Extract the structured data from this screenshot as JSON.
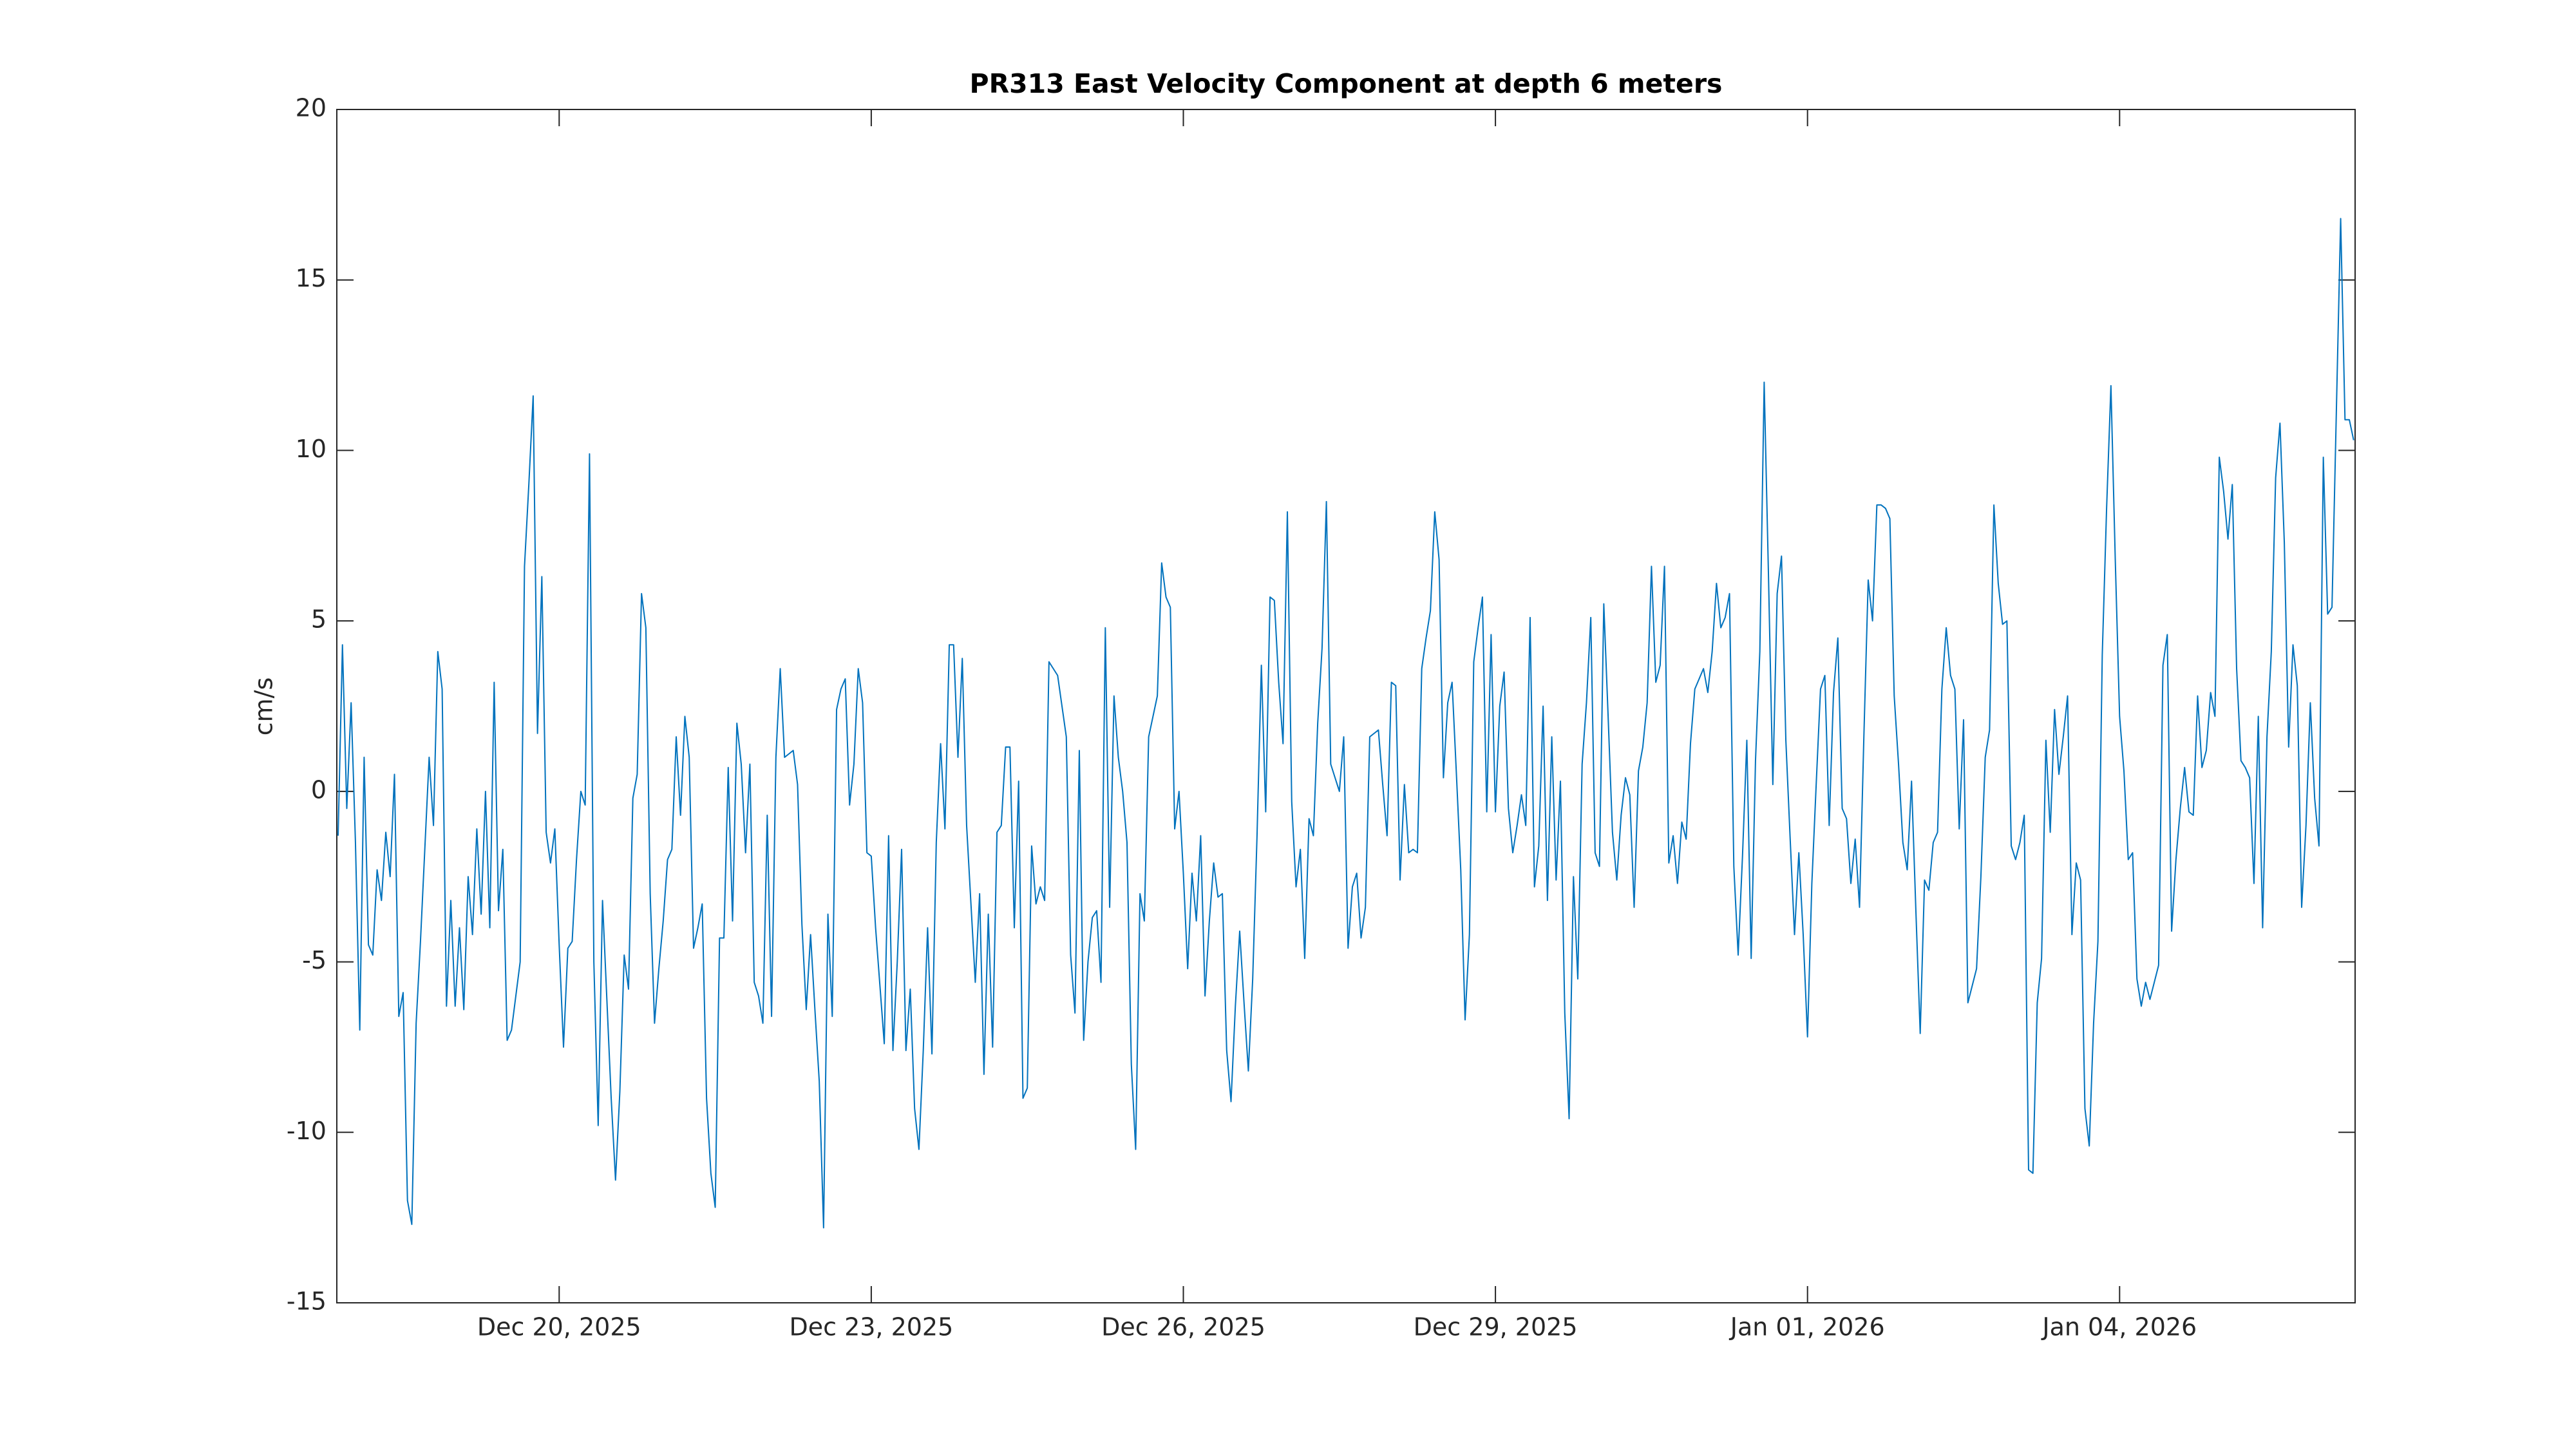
{
  "chart_data": {
    "type": "line",
    "title": "PR313 East Velocity Component at depth 6 meters",
    "ylabel": "cm/s",
    "color": "#0072bd",
    "ylim": [
      -15,
      20
    ],
    "yticks": [
      -15,
      -10,
      -5,
      0,
      5,
      10,
      15,
      20
    ],
    "xlim": [
      "2025-12-17 20:42",
      "2026-01-06 06:20"
    ],
    "xticks": [
      {
        "value": "2025-12-20 00:00",
        "label": "Dec 20, 2025"
      },
      {
        "value": "2025-12-23 00:00",
        "label": "Dec 23, 2025"
      },
      {
        "value": "2025-12-26 00:00",
        "label": "Dec 26, 2025"
      },
      {
        "value": "2025-12-29 00:00",
        "label": "Dec 29, 2025"
      },
      {
        "value": "2026-01-01 00:00",
        "label": "Jan 01, 2026"
      },
      {
        "value": "2026-01-04 00:00",
        "label": "Jan 04, 2026"
      }
    ],
    "x": [
      "2025-12-17 21:00",
      "2025-12-17 22:00",
      "2025-12-17 23:00",
      "2025-12-18 00:00",
      "2025-12-18 01:00",
      "2025-12-18 02:00",
      "2025-12-18 03:00",
      "2025-12-18 04:00",
      "2025-12-18 05:00",
      "2025-12-18 06:00",
      "2025-12-18 07:00",
      "2025-12-18 08:00",
      "2025-12-18 09:00",
      "2025-12-18 10:00",
      "2025-12-18 11:00",
      "2025-12-18 12:00",
      "2025-12-18 13:00",
      "2025-12-18 14:00",
      "2025-12-18 15:00",
      "2025-12-18 16:00",
      "2025-12-18 17:00",
      "2025-12-18 18:00",
      "2025-12-18 19:00",
      "2025-12-18 20:00",
      "2025-12-18 21:00",
      "2025-12-18 22:00",
      "2025-12-18 23:00",
      "2025-12-19 00:00",
      "2025-12-19 01:00",
      "2025-12-19 02:00",
      "2025-12-19 03:00",
      "2025-12-19 04:00",
      "2025-12-19 05:00",
      "2025-12-19 06:00",
      "2025-12-19 07:00",
      "2025-12-19 08:00",
      "2025-12-19 09:00",
      "2025-12-19 10:00",
      "2025-12-19 11:00",
      "2025-12-19 12:00",
      "2025-12-19 13:00",
      "2025-12-19 14:00",
      "2025-12-19 15:00",
      "2025-12-19 16:00",
      "2025-12-19 17:00",
      "2025-12-19 18:00",
      "2025-12-19 19:00",
      "2025-12-19 20:00",
      "2025-12-19 21:00",
      "2025-12-19 22:00",
      "2025-12-19 23:00",
      "2025-12-20 00:00",
      "2025-12-20 01:00",
      "2025-12-20 02:00",
      "2025-12-20 03:00",
      "2025-12-20 04:00",
      "2025-12-20 05:00",
      "2025-12-20 06:00",
      "2025-12-20 07:00",
      "2025-12-20 08:00",
      "2025-12-20 09:00",
      "2025-12-20 10:00",
      "2025-12-20 11:00",
      "2025-12-20 12:00",
      "2025-12-20 13:00",
      "2025-12-20 14:00",
      "2025-12-20 15:00",
      "2025-12-20 16:00",
      "2025-12-20 17:00",
      "2025-12-20 18:00",
      "2025-12-20 19:00",
      "2025-12-20 20:00",
      "2025-12-20 21:00",
      "2025-12-20 22:00",
      "2025-12-20 23:00",
      "2025-12-21 00:00",
      "2025-12-21 01:00",
      "2025-12-21 02:00",
      "2025-12-21 03:00",
      "2025-12-21 04:00",
      "2025-12-21 05:00",
      "2025-12-21 06:00",
      "2025-12-21 07:00",
      "2025-12-21 08:00",
      "2025-12-21 09:00",
      "2025-12-21 10:00",
      "2025-12-21 11:00",
      "2025-12-21 12:00",
      "2025-12-21 13:00",
      "2025-12-21 14:00",
      "2025-12-21 15:00",
      "2025-12-21 16:00",
      "2025-12-21 17:00",
      "2025-12-21 18:00",
      "2025-12-21 19:00",
      "2025-12-21 20:00",
      "2025-12-21 21:00",
      "2025-12-21 22:00",
      "2025-12-21 23:00",
      "2025-12-22 00:00",
      "2025-12-22 01:00",
      "2025-12-22 02:00",
      "2025-12-22 03:00",
      "2025-12-22 04:00",
      "2025-12-22 05:00",
      "2025-12-22 06:00",
      "2025-12-22 07:00",
      "2025-12-22 08:00",
      "2025-12-22 09:00",
      "2025-12-22 10:00",
      "2025-12-22 11:00",
      "2025-12-22 12:00",
      "2025-12-22 13:00",
      "2025-12-22 14:00",
      "2025-12-22 15:00",
      "2025-12-22 16:00",
      "2025-12-22 17:00",
      "2025-12-22 18:00",
      "2025-12-22 19:00",
      "2025-12-22 20:00",
      "2025-12-22 21:00",
      "2025-12-22 22:00",
      "2025-12-22 23:00",
      "2025-12-23 00:00",
      "2025-12-23 01:00",
      "2025-12-23 02:00",
      "2025-12-23 03:00",
      "2025-12-23 04:00",
      "2025-12-23 05:00",
      "2025-12-23 06:00",
      "2025-12-23 07:00",
      "2025-12-23 08:00",
      "2025-12-23 09:00",
      "2025-12-23 10:00",
      "2025-12-23 11:00",
      "2025-12-23 12:00",
      "2025-12-23 13:00",
      "2025-12-23 14:00",
      "2025-12-23 15:00",
      "2025-12-23 16:00",
      "2025-12-23 17:00",
      "2025-12-23 18:00",
      "2025-12-23 19:00",
      "2025-12-23 20:00",
      "2025-12-23 21:00",
      "2025-12-23 22:00",
      "2025-12-23 23:00",
      "2025-12-24 00:00",
      "2025-12-24 01:00",
      "2025-12-24 02:00",
      "2025-12-24 03:00",
      "2025-12-24 04:00",
      "2025-12-24 05:00",
      "2025-12-24 06:00",
      "2025-12-24 07:00",
      "2025-12-24 08:00",
      "2025-12-24 09:00",
      "2025-12-24 10:00",
      "2025-12-24 11:00",
      "2025-12-24 12:00",
      "2025-12-24 13:00",
      "2025-12-24 14:00",
      "2025-12-24 15:00",
      "2025-12-24 16:00",
      "2025-12-24 17:00",
      "2025-12-24 18:00",
      "2025-12-24 19:00",
      "2025-12-24 20:00",
      "2025-12-24 21:00",
      "2025-12-24 22:00",
      "2025-12-24 23:00",
      "2025-12-25 00:00",
      "2025-12-25 01:00",
      "2025-12-25 02:00",
      "2025-12-25 03:00",
      "2025-12-25 04:00",
      "2025-12-25 05:00",
      "2025-12-25 06:00",
      "2025-12-25 07:00",
      "2025-12-25 08:00",
      "2025-12-25 09:00",
      "2025-12-25 10:00",
      "2025-12-25 11:00",
      "2025-12-25 12:00",
      "2025-12-25 13:00",
      "2025-12-25 14:00",
      "2025-12-25 15:00",
      "2025-12-25 16:00",
      "2025-12-25 17:00",
      "2025-12-25 18:00",
      "2025-12-25 19:00",
      "2025-12-25 20:00",
      "2025-12-25 21:00",
      "2025-12-25 22:00",
      "2025-12-25 23:00",
      "2025-12-26 00:00",
      "2025-12-26 01:00",
      "2025-12-26 02:00",
      "2025-12-26 03:00",
      "2025-12-26 04:00",
      "2025-12-26 05:00",
      "2025-12-26 06:00",
      "2025-12-26 07:00",
      "2025-12-26 08:00",
      "2025-12-26 09:00",
      "2025-12-26 10:00",
      "2025-12-26 11:00",
      "2025-12-26 12:00",
      "2025-12-26 13:00",
      "2025-12-26 14:00",
      "2025-12-26 15:00",
      "2025-12-26 16:00",
      "2025-12-26 17:00",
      "2025-12-26 18:00",
      "2025-12-26 19:00",
      "2025-12-26 20:00",
      "2025-12-26 21:00",
      "2025-12-26 22:00",
      "2025-12-26 23:00",
      "2025-12-27 00:00",
      "2025-12-27 01:00",
      "2025-12-27 02:00",
      "2025-12-27 03:00",
      "2025-12-27 04:00",
      "2025-12-27 05:00",
      "2025-12-27 06:00",
      "2025-12-27 07:00",
      "2025-12-27 08:00",
      "2025-12-27 09:00",
      "2025-12-27 10:00",
      "2025-12-27 11:00",
      "2025-12-27 12:00",
      "2025-12-27 13:00",
      "2025-12-27 14:00",
      "2025-12-27 15:00",
      "2025-12-27 16:00",
      "2025-12-27 17:00",
      "2025-12-27 18:00",
      "2025-12-27 19:00",
      "2025-12-27 20:00",
      "2025-12-27 21:00",
      "2025-12-27 22:00",
      "2025-12-27 23:00",
      "2025-12-28 00:00",
      "2025-12-28 01:00",
      "2025-12-28 02:00",
      "2025-12-28 03:00",
      "2025-12-28 04:00",
      "2025-12-28 05:00",
      "2025-12-28 06:00",
      "2025-12-28 07:00",
      "2025-12-28 08:00",
      "2025-12-28 09:00",
      "2025-12-28 10:00",
      "2025-12-28 11:00",
      "2025-12-28 12:00",
      "2025-12-28 13:00",
      "2025-12-28 14:00",
      "2025-12-28 15:00",
      "2025-12-28 16:00",
      "2025-12-28 17:00",
      "2025-12-28 18:00",
      "2025-12-28 19:00",
      "2025-12-28 20:00",
      "2025-12-28 21:00",
      "2025-12-28 22:00",
      "2025-12-28 23:00",
      "2025-12-29 00:00",
      "2025-12-29 01:00",
      "2025-12-29 02:00",
      "2025-12-29 03:00",
      "2025-12-29 04:00",
      "2025-12-29 05:00",
      "2025-12-29 06:00",
      "2025-12-29 07:00",
      "2025-12-29 08:00",
      "2025-12-29 09:00",
      "2025-12-29 10:00",
      "2025-12-29 11:00",
      "2025-12-29 12:00",
      "2025-12-29 13:00",
      "2025-12-29 14:00",
      "2025-12-29 15:00",
      "2025-12-29 16:00",
      "2025-12-29 17:00",
      "2025-12-29 18:00",
      "2025-12-29 19:00",
      "2025-12-29 20:00",
      "2025-12-29 21:00",
      "2025-12-29 22:00",
      "2025-12-29 23:00",
      "2025-12-30 00:00",
      "2025-12-30 01:00",
      "2025-12-30 02:00",
      "2025-12-30 03:00",
      "2025-12-30 04:00",
      "2025-12-30 05:00",
      "2025-12-30 06:00",
      "2025-12-30 07:00",
      "2025-12-30 08:00",
      "2025-12-30 09:00",
      "2025-12-30 10:00",
      "2025-12-30 11:00",
      "2025-12-30 12:00",
      "2025-12-30 13:00",
      "2025-12-30 14:00",
      "2025-12-30 15:00",
      "2025-12-30 16:00",
      "2025-12-30 17:00",
      "2025-12-30 18:00",
      "2025-12-30 19:00",
      "2025-12-30 20:00",
      "2025-12-30 21:00",
      "2025-12-30 22:00",
      "2025-12-30 23:00",
      "2025-12-31 00:00",
      "2025-12-31 01:00",
      "2025-12-31 02:00",
      "2025-12-31 03:00",
      "2025-12-31 04:00",
      "2025-12-31 05:00",
      "2025-12-31 06:00",
      "2025-12-31 07:00",
      "2025-12-31 08:00",
      "2025-12-31 09:00",
      "2025-12-31 10:00",
      "2025-12-31 11:00",
      "2025-12-31 12:00",
      "2025-12-31 13:00",
      "2025-12-31 14:00",
      "2025-12-31 15:00",
      "2025-12-31 16:00",
      "2025-12-31 17:00",
      "2025-12-31 18:00",
      "2025-12-31 19:00",
      "2025-12-31 20:00",
      "2025-12-31 21:00",
      "2025-12-31 22:00",
      "2025-12-31 23:00",
      "2026-01-01 00:00",
      "2026-01-01 01:00",
      "2026-01-01 02:00",
      "2026-01-01 03:00",
      "2026-01-01 04:00",
      "2026-01-01 05:00",
      "2026-01-01 06:00",
      "2026-01-01 07:00",
      "2026-01-01 08:00",
      "2026-01-01 09:00",
      "2026-01-01 10:00",
      "2026-01-01 11:00",
      "2026-01-01 12:00",
      "2026-01-01 13:00",
      "2026-01-01 14:00",
      "2026-01-01 15:00",
      "2026-01-01 16:00",
      "2026-01-01 17:00",
      "2026-01-01 18:00",
      "2026-01-01 19:00",
      "2026-01-01 20:00",
      "2026-01-01 21:00",
      "2026-01-01 22:00",
      "2026-01-01 23:00",
      "2026-01-02 00:00",
      "2026-01-02 01:00",
      "2026-01-02 02:00",
      "2026-01-02 03:00",
      "2026-01-02 04:00",
      "2026-01-02 05:00",
      "2026-01-02 06:00",
      "2026-01-02 07:00",
      "2026-01-02 08:00",
      "2026-01-02 09:00",
      "2026-01-02 10:00",
      "2026-01-02 11:00",
      "2026-01-02 12:00",
      "2026-01-02 13:00",
      "2026-01-02 14:00",
      "2026-01-02 15:00",
      "2026-01-02 16:00",
      "2026-01-02 17:00",
      "2026-01-02 18:00",
      "2026-01-02 19:00",
      "2026-01-02 20:00",
      "2026-01-02 21:00",
      "2026-01-02 22:00",
      "2026-01-02 23:00",
      "2026-01-03 00:00",
      "2026-01-03 01:00",
      "2026-01-03 02:00",
      "2026-01-03 03:00",
      "2026-01-03 04:00",
      "2026-01-03 05:00",
      "2026-01-03 06:00",
      "2026-01-03 07:00",
      "2026-01-03 08:00",
      "2026-01-03 09:00",
      "2026-01-03 10:00",
      "2026-01-03 11:00",
      "2026-01-03 12:00",
      "2026-01-03 13:00",
      "2026-01-03 14:00",
      "2026-01-03 15:00",
      "2026-01-03 16:00",
      "2026-01-03 17:00",
      "2026-01-03 18:00",
      "2026-01-03 19:00",
      "2026-01-03 20:00",
      "2026-01-03 21:00",
      "2026-01-03 22:00",
      "2026-01-03 23:00",
      "2026-01-04 00:00",
      "2026-01-04 01:00",
      "2026-01-04 02:00",
      "2026-01-04 03:00",
      "2026-01-04 04:00",
      "2026-01-04 05:00",
      "2026-01-04 06:00",
      "2026-01-04 07:00",
      "2026-01-04 08:00",
      "2026-01-04 09:00",
      "2026-01-04 10:00",
      "2026-01-04 11:00",
      "2026-01-04 12:00",
      "2026-01-04 13:00",
      "2026-01-04 14:00",
      "2026-01-04 15:00",
      "2026-01-04 16:00",
      "2026-01-04 17:00",
      "2026-01-04 18:00",
      "2026-01-04 19:00",
      "2026-01-04 20:00",
      "2026-01-04 21:00",
      "2026-01-04 22:00",
      "2026-01-04 23:00",
      "2026-01-05 00:00",
      "2026-01-05 01:00",
      "2026-01-05 02:00",
      "2026-01-05 03:00",
      "2026-01-05 04:00",
      "2026-01-05 05:00",
      "2026-01-05 06:00",
      "2026-01-05 07:00",
      "2026-01-05 08:00",
      "2026-01-05 09:00",
      "2026-01-05 10:00",
      "2026-01-05 11:00",
      "2026-01-05 12:00",
      "2026-01-05 13:00",
      "2026-01-05 14:00",
      "2026-01-05 15:00",
      "2026-01-05 16:00",
      "2026-01-05 17:00",
      "2026-01-05 18:00",
      "2026-01-05 19:00",
      "2026-01-05 20:00",
      "2026-01-05 21:00",
      "2026-01-05 22:00",
      "2026-01-05 23:00",
      "2026-01-06 00:00",
      "2026-01-06 01:00",
      "2026-01-06 02:00",
      "2026-01-06 03:00",
      "2026-01-06 04:00",
      "2026-01-06 05:00",
      "2026-01-06 06:00"
    ],
    "values": [
      -1.3,
      4.3,
      -0.5,
      2.6,
      -1.5,
      -7,
      1,
      -4.5,
      -4.8,
      -2.3,
      -3.2,
      -1.2,
      -2.5,
      0.5,
      -6.6,
      -5.9,
      -12,
      -12.7,
      -6.8,
      -4.4,
      -1.7,
      1,
      -1,
      4.1,
      3,
      -6.3,
      -3.2,
      -6.3,
      -4,
      -6.4,
      -2.5,
      -4.2,
      -1.1,
      -3.6,
      0,
      -4,
      3.2,
      -3.5,
      -1.7,
      -7.3,
      -7,
      -6,
      -5,
      6.6,
      9,
      11.6,
      1.7,
      6.3,
      -1.2,
      -2.1,
      -1.1,
      -4.5,
      -7.5,
      -4.6,
      -4.4,
      -2,
      0,
      -0.4,
      9.9,
      -5,
      -9.8,
      -3.2,
      -6.1,
      -9,
      -11.4,
      -8.8,
      -4.8,
      -5.8,
      -0.2,
      0.5,
      5.8,
      4.8,
      -3,
      -6.8,
      -5.2,
      -3.8,
      -2,
      -1.7,
      1.6,
      -0.7,
      2.2,
      1,
      -4.6,
      -4,
      -3.3,
      -9,
      -11.2,
      -12.2,
      -4.3,
      -4.3,
      0.7,
      -3.8,
      2,
      0.8,
      -1.8,
      0.8,
      -5.6,
      -6,
      -6.8,
      -0.7,
      -6.6,
      1,
      3.6,
      1,
      1.1,
      1.2,
      0.2,
      -3.9,
      -6.4,
      -4.2,
      -6.4,
      -8.5,
      -12.8,
      -3.6,
      -6.6,
      2.4,
      3,
      3.3,
      -0.4,
      0.8,
      3.6,
      2.6,
      -1.8,
      -1.9,
      -4,
      -5.7,
      -7.4,
      -1.3,
      -7.6,
      -5,
      -1.7,
      -7.6,
      -5.8,
      -9.3,
      -10.5,
      -7.6,
      -4,
      -7.7,
      -1.5,
      1.4,
      -1.1,
      4.3,
      4.3,
      1,
      3.9,
      -1,
      -3.3,
      -5.6,
      -3,
      -8.3,
      -3.6,
      -7.5,
      -1.2,
      -1,
      1.3,
      1.3,
      -4,
      0.3,
      -9,
      -8.7,
      -1.6,
      -3.3,
      -2.8,
      -3.2,
      3.8,
      3.6,
      3.4,
      2.5,
      1.6,
      -4.8,
      -6.5,
      1.2,
      -7.3,
      -5,
      -3.7,
      -3.5,
      -5.6,
      4.8,
      -3.4,
      2.8,
      1,
      0,
      -1.5,
      -8,
      -10.5,
      -3,
      -3.8,
      1.6,
      2.2,
      2.8,
      6.7,
      5.7,
      5.4,
      -1.1,
      0,
      -2.4,
      -5.2,
      -2.4,
      -3.8,
      -1.3,
      -6,
      -3.8,
      -2.1,
      -3.1,
      -3,
      -7.6,
      -9.1,
      -6.3,
      -4.1,
      -6.2,
      -8.2,
      -5.5,
      -1.3,
      3.7,
      -0.6,
      5.7,
      5.6,
      3.2,
      1.4,
      8.2,
      -0.3,
      -2.8,
      -1.7,
      -4.9,
      -0.8,
      -1.3,
      2,
      4.2,
      8.5,
      0.8,
      0.4,
      0,
      1.6,
      -4.6,
      -2.8,
      -2.4,
      -4.3,
      -3.4,
      1.6,
      1.7,
      1.8,
      0.2,
      -1.3,
      3.2,
      3.1,
      -2.6,
      0.2,
      -1.8,
      -1.7,
      -1.8,
      3.6,
      4.5,
      5.3,
      8.2,
      6.8,
      0.4,
      2.6,
      3.2,
      0.5,
      -2.3,
      -6.7,
      -4.2,
      3.8,
      4.8,
      5.7,
      -0.6,
      4.6,
      -0.6,
      2.5,
      3.5,
      -0.5,
      -1.8,
      -1,
      -0.1,
      -1,
      5.1,
      -2.8,
      -1.6,
      2.5,
      -3.2,
      1.6,
      -2.6,
      0.3,
      -6.5,
      -9.6,
      -2.5,
      -5.5,
      0.8,
      2.6,
      5.1,
      -1.8,
      -2.2,
      5.5,
      2.2,
      -1.2,
      -2.6,
      -0.7,
      0.4,
      -0.1,
      -3.4,
      0.6,
      1.3,
      2.6,
      6.6,
      3.2,
      3.7,
      6.6,
      -2.1,
      -1.3,
      -2.7,
      -0.9,
      -1.4,
      1.4,
      3,
      3.3,
      3.6,
      2.9,
      4.1,
      6.1,
      4.8,
      5.1,
      5.8,
      -2.2,
      -4.8,
      -1.9,
      1.5,
      -4.9,
      0.9,
      4.1,
      12,
      6.3,
      0.2,
      5.8,
      6.9,
      1.5,
      -1.4,
      -4.2,
      -1.8,
      -4.2,
      -7.2,
      -2.7,
      0.2,
      3,
      3.4,
      -1,
      2.9,
      4.5,
      -0.5,
      -0.8,
      -2.7,
      -1.4,
      -3.4,
      1.6,
      6.2,
      5,
      8.4,
      8.4,
      8.3,
      8,
      2.8,
      0.8,
      -1.5,
      -2.3,
      0.3,
      -3.5,
      -7.1,
      -2.6,
      -2.9,
      -1.5,
      -1.2,
      3,
      4.8,
      3.4,
      3,
      -1.1,
      2.1,
      -6.2,
      -5.7,
      -5.2,
      -2.5,
      1,
      1.8,
      8.4,
      6.1,
      4.9,
      5,
      -1.6,
      -2,
      -1.5,
      -0.7,
      -11.1,
      -11.2,
      -6.2,
      -4.9,
      1.5,
      -1.2,
      2.4,
      0.5,
      1.6,
      2.8,
      -4.2,
      -2.1,
      -2.6,
      -9.3,
      -10.4,
      -6.8,
      -4.4,
      4,
      8.3,
      11.9,
      6.8,
      2.2,
      0.6,
      -2,
      -1.8,
      -5.5,
      -6.3,
      -5.6,
      -6.1,
      -5.6,
      -5.1,
      3.7,
      4.6,
      -4.1,
      -2,
      -0.5,
      0.7,
      -0.6,
      -0.7,
      2.8,
      0.7,
      1.2,
      2.9,
      2.2,
      9.8,
      8.8,
      7.4,
      9,
      3.6,
      0.9,
      0.7,
      0.4,
      -2.7,
      2.2,
      -4,
      1.6,
      4.1,
      9.2,
      10.8,
      7.3,
      1.3,
      4.3,
      3.1,
      -3.4,
      -1,
      2.6,
      -0.2,
      -1.6,
      9.8,
      5.2,
      5.4,
      11.1,
      16.8,
      10.9,
      10.9,
      10.3
    ]
  }
}
